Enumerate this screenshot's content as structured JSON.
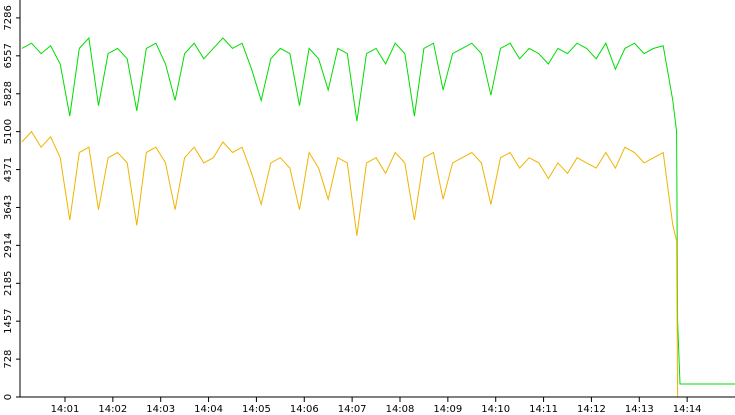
{
  "chart_data": {
    "type": "line",
    "x": [
      0.1,
      0.3,
      0.5,
      0.7,
      0.9,
      1.1,
      1.3,
      1.5,
      1.7,
      1.9,
      2.1,
      2.3,
      2.5,
      2.7,
      2.9,
      3.1,
      3.3,
      3.5,
      3.7,
      3.9,
      4.1,
      4.3,
      4.5,
      4.7,
      4.9,
      5.1,
      5.3,
      5.5,
      5.7,
      5.9,
      6.1,
      6.3,
      6.5,
      6.7,
      6.9,
      7.1,
      7.3,
      7.5,
      7.7,
      7.9,
      8.1,
      8.3,
      8.5,
      8.7,
      8.9,
      9.1,
      9.3,
      9.5,
      9.7,
      9.9,
      10.1,
      10.3,
      10.5,
      10.7,
      10.9,
      11.1,
      11.3,
      11.5,
      11.7,
      11.9,
      12.1,
      12.3,
      12.5,
      12.7,
      12.9,
      13.1,
      13.3,
      13.5,
      13.7,
      13.78,
      13.8,
      13.85,
      15.0
    ],
    "series": [
      {
        "color": "#00dd00",
        "values": [
          6700,
          6800,
          6600,
          6750,
          6400,
          5400,
          6700,
          6900,
          5600,
          6600,
          6700,
          6500,
          5500,
          6700,
          6800,
          6400,
          5700,
          6600,
          6800,
          6500,
          6700,
          6900,
          6700,
          6800,
          6300,
          5700,
          6500,
          6700,
          6600,
          5600,
          6700,
          6500,
          5900,
          6700,
          6600,
          5300,
          6600,
          6700,
          6400,
          6800,
          6600,
          5400,
          6700,
          6800,
          5900,
          6600,
          6700,
          6800,
          6600,
          5800,
          6700,
          6800,
          6500,
          6700,
          6600,
          6400,
          6700,
          6600,
          6800,
          6700,
          6500,
          6800,
          6300,
          6700,
          6800,
          6600,
          6700,
          6750,
          5700,
          5100,
          1450,
          250,
          250
        ]
      },
      {
        "color": "#f0b400",
        "values": [
          4900,
          5100,
          4800,
          5000,
          4600,
          3400,
          4700,
          4800,
          3600,
          4600,
          4700,
          4500,
          3300,
          4700,
          4800,
          4500,
          3600,
          4600,
          4800,
          4500,
          4600,
          4900,
          4700,
          4800,
          4300,
          3700,
          4500,
          4600,
          4400,
          3600,
          4700,
          4400,
          3800,
          4600,
          4500,
          3100,
          4500,
          4600,
          4300,
          4700,
          4500,
          3400,
          4600,
          4700,
          3800,
          4500,
          4600,
          4700,
          4500,
          3700,
          4600,
          4700,
          4400,
          4600,
          4500,
          4200,
          4500,
          4300,
          4600,
          4500,
          4400,
          4700,
          4400,
          4800,
          4700,
          4500,
          4600,
          4700,
          3300,
          3000,
          0,
          0,
          0
        ]
      }
    ],
    "xlim": [
      0.06,
      15.0
    ],
    "xticks": [
      {
        "value": 1,
        "label": "14:01"
      },
      {
        "value": 2,
        "label": "14:02"
      },
      {
        "value": 3,
        "label": "14:03"
      },
      {
        "value": 4,
        "label": "14:04"
      },
      {
        "value": 5,
        "label": "14:05"
      },
      {
        "value": 6,
        "label": "14:06"
      },
      {
        "value": 7,
        "label": "14:07"
      },
      {
        "value": 8,
        "label": "14:08"
      },
      {
        "value": 9,
        "label": "14:09"
      },
      {
        "value": 10,
        "label": "14:10"
      },
      {
        "value": 11,
        "label": "14:11"
      },
      {
        "value": 12,
        "label": "14:12"
      },
      {
        "value": 13,
        "label": "14:13"
      },
      {
        "value": 14,
        "label": "14:14"
      }
    ],
    "ylim": [
      0,
      7630
    ],
    "yticks": [
      0,
      728,
      1457,
      2185,
      2914,
      3643,
      4371,
      5100,
      5828,
      6557,
      7286
    ],
    "grid": false
  }
}
